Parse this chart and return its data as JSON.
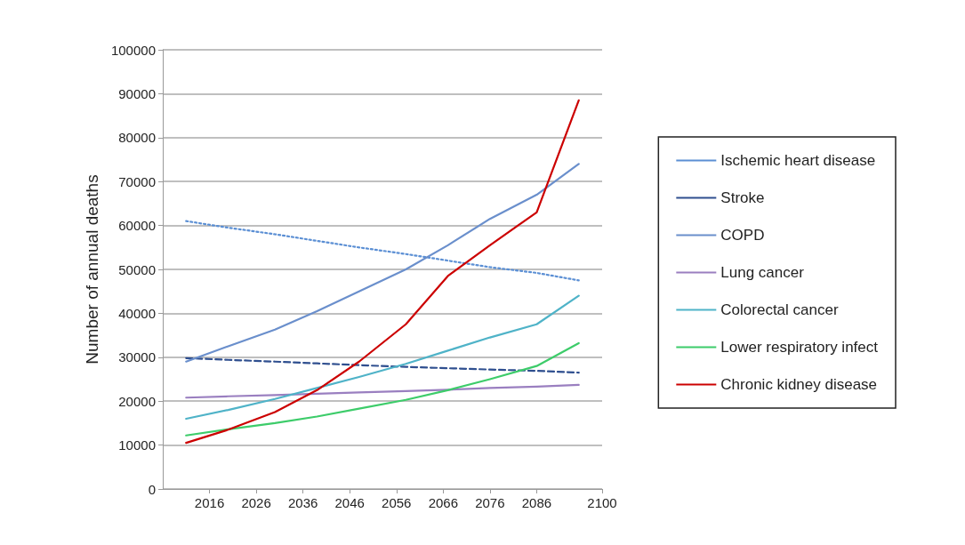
{
  "chart_data": {
    "type": "line",
    "ylabel": "Number of annual deaths",
    "x": [
      2011,
      2020,
      2030,
      2039,
      2048,
      2058,
      2067,
      2076,
      2086,
      2095
    ],
    "xlim": [
      2006,
      2100
    ],
    "xticks": [
      2016,
      2026,
      2036,
      2046,
      2056,
      2066,
      2076,
      2086,
      2100
    ],
    "ylim": [
      0,
      100000
    ],
    "yticks": [
      0,
      10000,
      20000,
      30000,
      40000,
      50000,
      60000,
      70000,
      80000,
      90000,
      100000
    ],
    "grid": "y",
    "legend": "right",
    "marker": "none",
    "series": [
      {
        "name": "Ischemic heart disease",
        "color": "#5b8fd4",
        "line_style": "dotted",
        "values": [
          61000,
          59500,
          58000,
          56500,
          55000,
          53500,
          52000,
          50500,
          49200,
          47500
        ]
      },
      {
        "name": "Stroke",
        "color": "#2f4f8f",
        "line_style": "dashed",
        "values": [
          29800,
          29400,
          29000,
          28600,
          28200,
          27800,
          27500,
          27200,
          26900,
          26500
        ]
      },
      {
        "name": "COPD",
        "color": "#6a8fcc",
        "line_style": "solid",
        "values": [
          29000,
          32500,
          36300,
          40500,
          45000,
          50000,
          55500,
          61500,
          67000,
          74000
        ]
      },
      {
        "name": "Lung cancer",
        "color": "#9a7fc0",
        "line_style": "solid",
        "values": [
          20800,
          21100,
          21400,
          21700,
          22000,
          22300,
          22600,
          23000,
          23300,
          23700
        ]
      },
      {
        "name": "Colorectal cancer",
        "color": "#4fb3c8",
        "line_style": "solid",
        "values": [
          16000,
          18000,
          20500,
          23000,
          25500,
          28500,
          31500,
          34500,
          37500,
          44000
        ]
      },
      {
        "name": "Lower respiratory infect",
        "color": "#3dcc6a",
        "line_style": "solid",
        "values": [
          12200,
          13600,
          15000,
          16500,
          18300,
          20300,
          22500,
          25000,
          28000,
          33200
        ]
      },
      {
        "name": "Chronic kidney disease",
        "color": "#cc0000",
        "line_style": "solid",
        "values": [
          10500,
          13500,
          17500,
          22500,
          29000,
          37500,
          48500,
          55500,
          63000,
          88500
        ]
      }
    ]
  }
}
